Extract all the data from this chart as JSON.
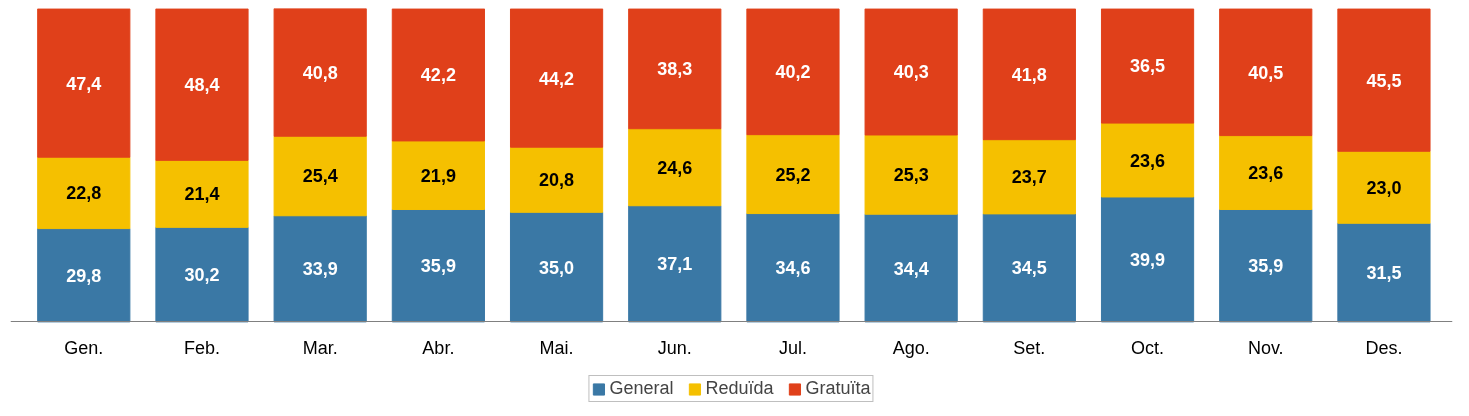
{
  "chart_data": {
    "type": "bar",
    "stacked": true,
    "legend": "bottom",
    "categories": [
      "Gen.",
      "Feb.",
      "Mar.",
      "Abr.",
      "Mai.",
      "Jun.",
      "Jul.",
      "Ago.",
      "Set.",
      "Oct.",
      "Nov.",
      "Des."
    ],
    "series": [
      {
        "name": "General",
        "color": "#3a78a5",
        "values": [
          29.8,
          30.2,
          33.9,
          35.9,
          35.0,
          37.1,
          34.6,
          34.4,
          34.5,
          39.9,
          35.9,
          31.5
        ],
        "value_labels": [
          "29,8",
          "30,2",
          "33,9",
          "35,9",
          "35,0",
          "37,1",
          "34,6",
          "34,4",
          "34,5",
          "39,9",
          "35,9",
          "31,5"
        ]
      },
      {
        "name": "Reduïda",
        "color": "#f5c000",
        "values": [
          22.8,
          21.4,
          25.4,
          21.9,
          20.8,
          24.6,
          25.2,
          25.3,
          23.7,
          23.6,
          23.6,
          23.0
        ],
        "value_labels": [
          "22,8",
          "21,4",
          "25,4",
          "21,9",
          "20,8",
          "24,6",
          "25,2",
          "25,3",
          "23,7",
          "23,6",
          "23,6",
          "23,0"
        ]
      },
      {
        "name": "Gratuïta",
        "color": "#e0401a",
        "values": [
          47.4,
          48.4,
          40.8,
          42.2,
          44.2,
          38.3,
          40.2,
          40.3,
          41.8,
          36.5,
          40.5,
          45.5
        ],
        "value_labels": [
          "47,4",
          "48,4",
          "40,8",
          "42,2",
          "44,2",
          "38,3",
          "40,2",
          "40,3",
          "41,8",
          "36,5",
          "40,5",
          "45,5"
        ]
      }
    ]
  }
}
